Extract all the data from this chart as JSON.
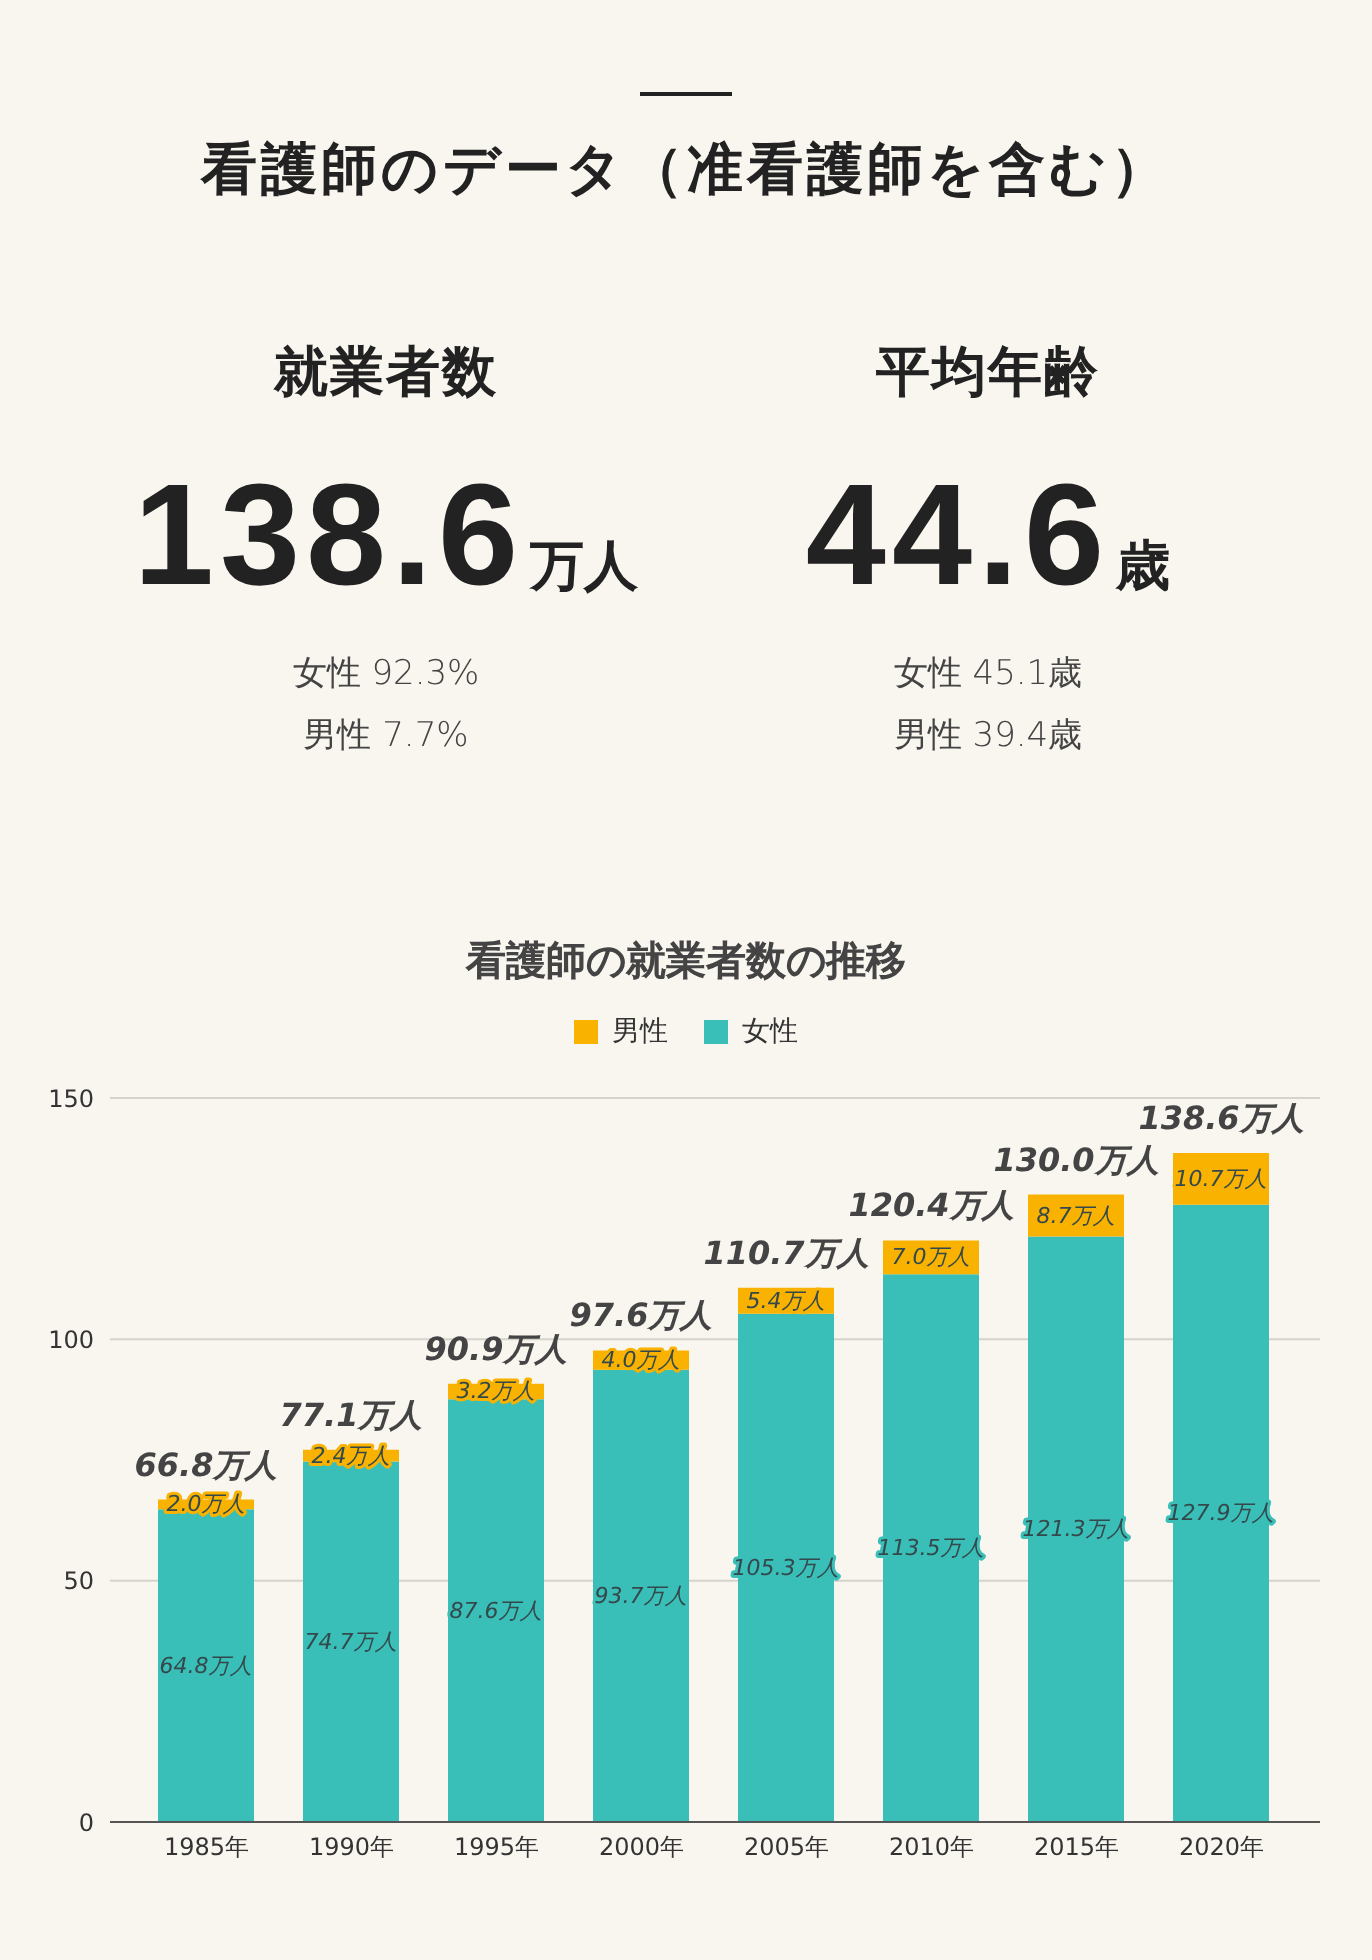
{
  "chart_data": [
    {
      "type": "other",
      "title": "看護師のデータ（准看護師を含む）",
      "annotations": [
        "就業者数",
        "138.6万人",
        "女性 92.3%",
        "男性 7.7%",
        "平均年齢",
        "44.6歳",
        "女性 45.1歳",
        "男性 39.4歳"
      ]
    },
    {
      "type": "bar",
      "title": "看護師の就業者数の推移",
      "categories": [
        "1985年",
        "1990年",
        "1995年",
        "2000年",
        "2005年",
        "2010年",
        "2015年",
        "2020年"
      ],
      "series": [
        {
          "name": "女性",
          "color": "#3abeb8",
          "values": [
            64.8,
            74.7,
            87.6,
            93.7,
            105.3,
            113.5,
            121.3,
            127.9
          ],
          "value_labels": [
            "64.8万人",
            "74.7万人",
            "87.6万人",
            "93.7万人",
            "105.3万人",
            "113.5万人",
            "121.3万人",
            "127.9万人"
          ]
        },
        {
          "name": "男性",
          "color": "#f9b200",
          "values": [
            2.0,
            2.4,
            3.2,
            4.0,
            5.4,
            7.0,
            8.7,
            10.7
          ],
          "value_labels": [
            "2.0万人",
            "2.4万人",
            "3.2万人",
            "4.0万人",
            "5.4万人",
            "7.0万人",
            "8.7万人",
            "10.7万人"
          ]
        }
      ],
      "totals": [
        "66.8万人",
        "77.1万人",
        "90.9万人",
        "97.6万人",
        "110.7万人",
        "120.4万人",
        "130.0万人",
        "138.6万人"
      ],
      "stacked": true,
      "ylim": [
        0,
        150
      ],
      "yticks": [
        0,
        50,
        100,
        150
      ],
      "grid": "y",
      "legend": "top"
    }
  ]
}
